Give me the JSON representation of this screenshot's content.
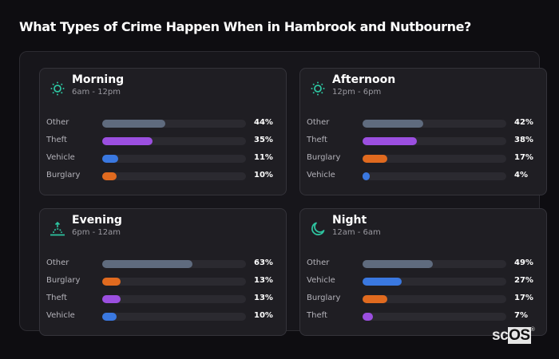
{
  "title": "What Types of Crime Happen When in Hambrook and Nutbourne?",
  "colors": {
    "Other": "#5f6b7e",
    "Theft": "#9b4fe0",
    "Vehicle": "#3a78e0",
    "Burglary": "#e06a1f",
    "icon": "#2ec4a0"
  },
  "panels": [
    {
      "name": "Morning",
      "range": "6am - 12pm",
      "icon": "sun-icon",
      "rows": [
        {
          "label": "Other",
          "value": 44,
          "text": "44%"
        },
        {
          "label": "Theft",
          "value": 35,
          "text": "35%"
        },
        {
          "label": "Vehicle",
          "value": 11,
          "text": "11%"
        },
        {
          "label": "Burglary",
          "value": 10,
          "text": "10%"
        }
      ]
    },
    {
      "name": "Afternoon",
      "range": "12pm - 6pm",
      "icon": "sun-icon",
      "rows": [
        {
          "label": "Other",
          "value": 42,
          "text": "42%"
        },
        {
          "label": "Theft",
          "value": 38,
          "text": "38%"
        },
        {
          "label": "Burglary",
          "value": 17,
          "text": "17%"
        },
        {
          "label": "Vehicle",
          "value": 4,
          "text": "4%"
        }
      ]
    },
    {
      "name": "Evening",
      "range": "6pm - 12am",
      "icon": "sunset-icon",
      "rows": [
        {
          "label": "Other",
          "value": 63,
          "text": "63%"
        },
        {
          "label": "Burglary",
          "value": 13,
          "text": "13%"
        },
        {
          "label": "Theft",
          "value": 13,
          "text": "13%"
        },
        {
          "label": "Vehicle",
          "value": 10,
          "text": "10%"
        }
      ]
    },
    {
      "name": "Night",
      "range": "12am - 6am",
      "icon": "moon-icon",
      "rows": [
        {
          "label": "Other",
          "value": 49,
          "text": "49%"
        },
        {
          "label": "Vehicle",
          "value": 27,
          "text": "27%"
        },
        {
          "label": "Burglary",
          "value": 17,
          "text": "17%"
        },
        {
          "label": "Theft",
          "value": 7,
          "text": "7%"
        }
      ]
    }
  ],
  "logo": {
    "sc": "sc",
    "os": "OS",
    "reg": "®"
  },
  "chart_data": {
    "type": "bar",
    "title": "What Types of Crime Happen When in Hambrook and Nutbourne?",
    "orientation": "horizontal",
    "unit": "%",
    "xlabel": "",
    "ylabel": "",
    "xlim": [
      0,
      100
    ],
    "grid": false,
    "panels": [
      {
        "title": "Morning",
        "subtitle": "6am - 12pm",
        "categories": [
          "Other",
          "Theft",
          "Vehicle",
          "Burglary"
        ],
        "values": [
          44,
          35,
          11,
          10
        ]
      },
      {
        "title": "Afternoon",
        "subtitle": "12pm - 6pm",
        "categories": [
          "Other",
          "Theft",
          "Burglary",
          "Vehicle"
        ],
        "values": [
          42,
          38,
          17,
          4
        ]
      },
      {
        "title": "Evening",
        "subtitle": "6pm - 12am",
        "categories": [
          "Other",
          "Burglary",
          "Theft",
          "Vehicle"
        ],
        "values": [
          63,
          13,
          13,
          10
        ]
      },
      {
        "title": "Night",
        "subtitle": "12am - 6am",
        "categories": [
          "Other",
          "Vehicle",
          "Burglary",
          "Theft"
        ],
        "values": [
          49,
          27,
          17,
          7
        ]
      }
    ]
  }
}
